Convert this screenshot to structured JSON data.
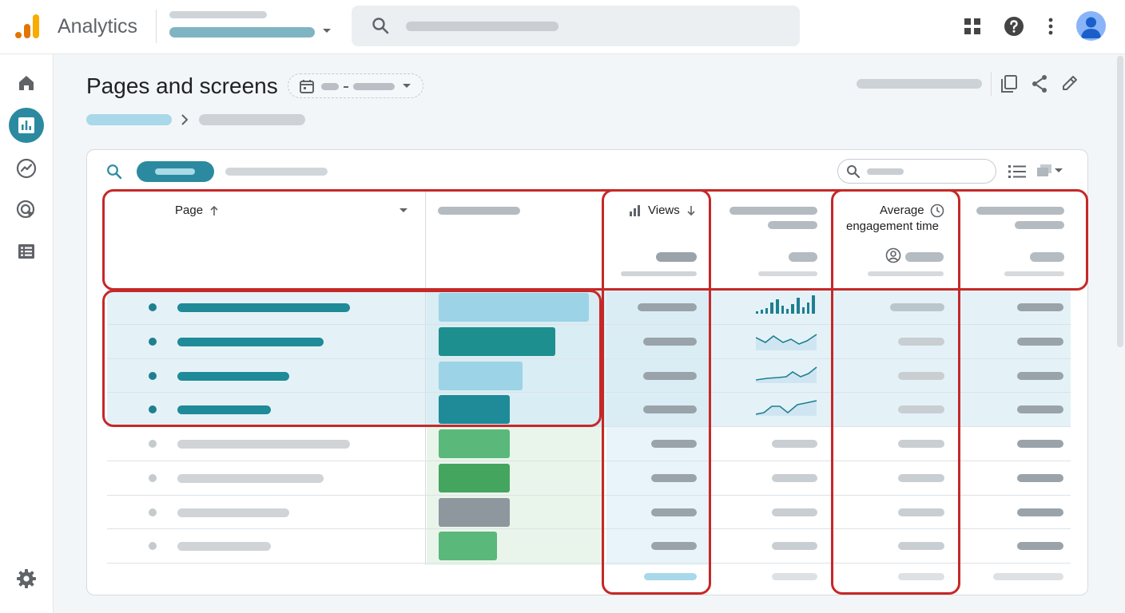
{
  "app": {
    "name": "Analytics",
    "brand_colors": [
      "#f9ab00",
      "#e37400"
    ]
  },
  "page": {
    "title": "Pages and screens"
  },
  "nav": {
    "items": [
      "home-icon",
      "reports-icon",
      "explore-icon",
      "advertising-icon",
      "configure-icon"
    ],
    "active": "reports-icon",
    "settings": "settings-icon"
  },
  "toolbar_icons": [
    "apps-icon",
    "help-icon",
    "more-vert-icon",
    "account-avatar"
  ],
  "page_actions": [
    "compare-icon",
    "share-icon",
    "edit-icon"
  ],
  "table": {
    "columns": {
      "page": "Page",
      "views": "Views",
      "avg_engagement_line1": "Average",
      "avg_engagement_line2": "engagement time"
    },
    "sort": {
      "page": "ascending",
      "views": "descending"
    }
  },
  "colors": {
    "accent": "#2b8aa0",
    "highlight": "#c62828",
    "bar_blue_light": "#9dd3e6",
    "bar_teal": "#1e8f8f",
    "bar_green": "#5ab87a",
    "bar_green_dark": "#44a55f",
    "bar_gray": "#8e979e"
  }
}
